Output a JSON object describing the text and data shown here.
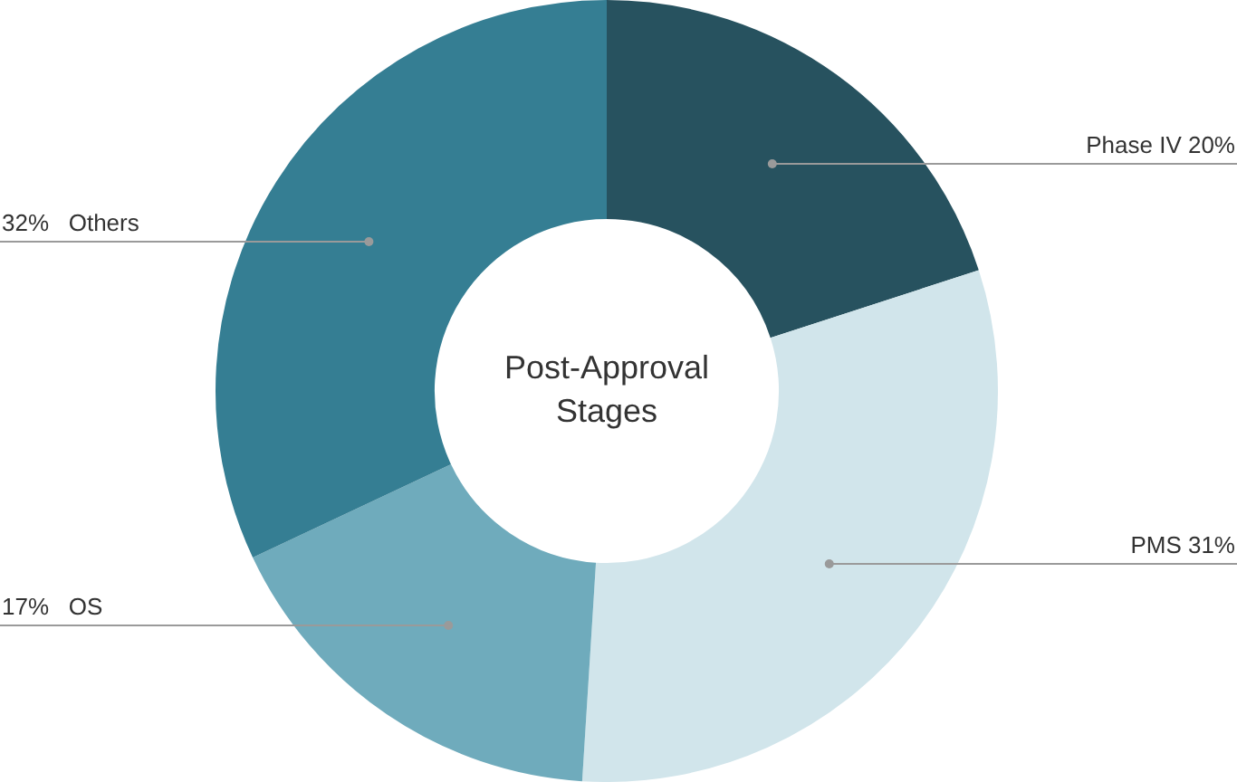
{
  "chart_data": {
    "type": "donut",
    "title": "Post-Approval Stages",
    "categories": [
      "Phase IV",
      "PMS",
      "OS",
      "Others"
    ],
    "values": [
      20,
      31,
      17,
      32
    ],
    "colors": [
      "#27525f",
      "#d1e5eb",
      "#6fabbc",
      "#357e93"
    ],
    "value_labels": [
      "20%",
      "31%",
      "17%",
      "32%"
    ]
  }
}
